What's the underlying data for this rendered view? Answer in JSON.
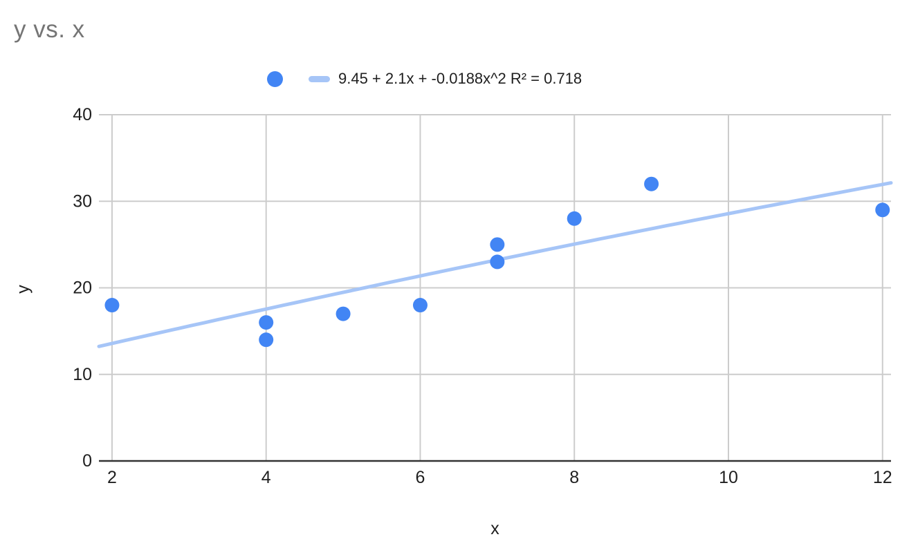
{
  "chart_data": {
    "type": "scatter",
    "title": "y vs. x",
    "xlabel": "x",
    "ylabel": "y",
    "series": [
      {
        "name": "y",
        "points": [
          [
            2,
            18
          ],
          [
            4,
            16
          ],
          [
            4,
            14
          ],
          [
            5,
            17
          ],
          [
            6,
            18
          ],
          [
            7,
            25
          ],
          [
            7,
            23
          ],
          [
            8,
            28
          ],
          [
            9,
            32
          ],
          [
            12,
            29
          ]
        ]
      }
    ],
    "trendline": {
      "kind": "quadratic",
      "equation": "9.45 + 2.1x + -0.0188x^2",
      "coefficients": [
        9.45,
        2.1,
        -0.0188
      ],
      "r2": 0.718
    },
    "legend": {
      "position": "top",
      "entries": [
        {
          "label": "9.45 + 2.1x + -0.0188x^2 R² = 0.718",
          "markers": [
            "point",
            "trendline"
          ]
        }
      ]
    },
    "axes": {
      "x_ticks": [
        2,
        4,
        6,
        8,
        10,
        12
      ],
      "y_ticks": [
        0,
        10,
        20,
        30,
        40
      ],
      "xlim": [
        1.83,
        12.11
      ],
      "ylim": [
        0,
        40
      ],
      "grid": true
    },
    "colors": {
      "point": "#4285F4",
      "trendline": "#A6C5F7",
      "gridline": "#CCCCCC",
      "axis_line": "#333333",
      "tick_label": "#1F1F1F",
      "axis_title": "#1F1F1F",
      "legend_text": "#1F1F1F",
      "title": "#757575",
      "background": "#FFFFFF"
    }
  }
}
